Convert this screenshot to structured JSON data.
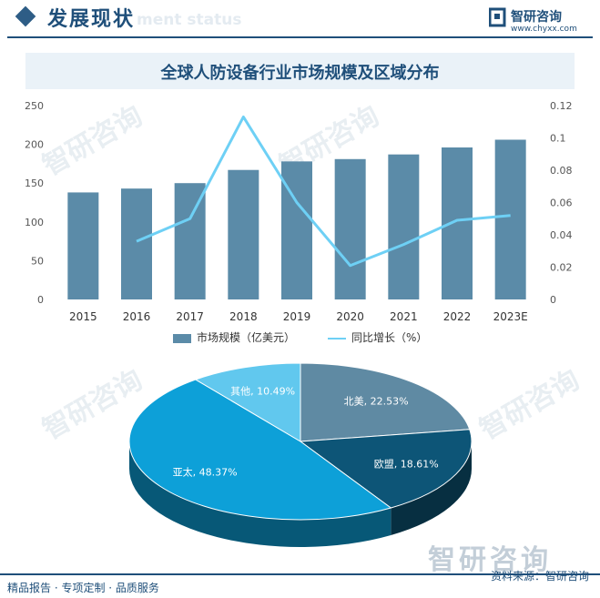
{
  "header": {
    "title": "发展现状",
    "ghost": "ment status"
  },
  "logo": {
    "name": "智研咨询",
    "url": "www.chyxx.com"
  },
  "chart_title": "全球人防设备行业市场规模及区域分布",
  "watermark": "智研咨询",
  "chart_data": [
    {
      "type": "bar",
      "categories": [
        "2015",
        "2016",
        "2017",
        "2018",
        "2019",
        "2020",
        "2021",
        "2022",
        "2023E"
      ],
      "series": [
        {
          "name": "市场规模（亿美元）",
          "type": "bar",
          "axis": "left",
          "values": [
            138,
            143,
            150,
            167,
            178,
            181,
            187,
            196,
            206
          ]
        },
        {
          "name": "同比增长（%）",
          "type": "line",
          "axis": "right",
          "values": [
            null,
            0.036,
            0.05,
            0.113,
            0.06,
            0.021,
            0.034,
            0.049,
            0.052
          ]
        }
      ],
      "y_left": {
        "min": 0,
        "max": 250,
        "ticks": [
          "0",
          "50",
          "100",
          "150",
          "200",
          "250"
        ]
      },
      "y_right": {
        "min": 0,
        "max": 0.12,
        "ticks": [
          "0",
          "0.02",
          "0.04",
          "0.06",
          "0.08",
          "0.1",
          "0.12"
        ]
      },
      "colors": {
        "bar": "#5b8ba8",
        "line": "#6ed0f5"
      }
    },
    {
      "type": "pie",
      "slices": [
        {
          "label": "北美",
          "value": 22.53,
          "text": "北美, 22.53%",
          "color": "#5f8aa3"
        },
        {
          "label": "欧盟",
          "value": 18.61,
          "text": "欧盟, 18.61%",
          "color": "#0d5577"
        },
        {
          "label": "亚太",
          "value": 48.37,
          "text": "亚太, 48.37%",
          "color": "#0da0d8"
        },
        {
          "label": "其他",
          "value": 10.49,
          "text": "其他, 10.49%",
          "color": "#61c8ee"
        }
      ]
    }
  ],
  "footer": {
    "left": "精品报告 · 专项定制 · 品质服务",
    "right": "资料来源：智研咨询"
  }
}
